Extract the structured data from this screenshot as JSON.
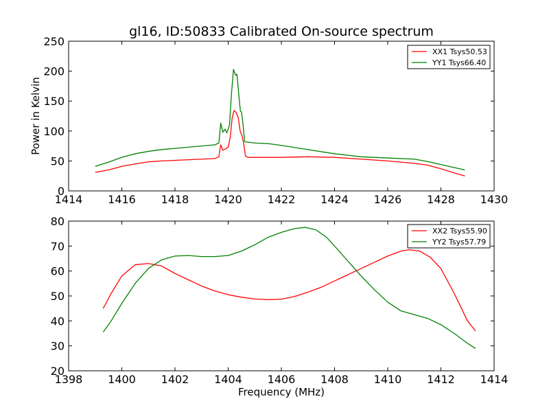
{
  "chart_data": [
    {
      "type": "line",
      "title": "gl16, ID:50833 Calibrated On-source spectrum",
      "xlabel": "",
      "ylabel": "Power in Kelvin",
      "xlim": [
        1414,
        1430
      ],
      "ylim": [
        0,
        250
      ],
      "xticks": [
        1414,
        1416,
        1418,
        1420,
        1422,
        1424,
        1426,
        1428,
        1430
      ],
      "yticks": [
        0,
        50,
        100,
        150,
        200,
        250
      ],
      "grid": false,
      "legend": "top-right",
      "series": [
        {
          "name": "XX1 Tsys50.53",
          "color": "#ff0000",
          "points": [
            [
              1415.0,
              31
            ],
            [
              1415.5,
              35
            ],
            [
              1416.0,
              41
            ],
            [
              1416.5,
              45
            ],
            [
              1417.0,
              48.5
            ],
            [
              1417.5,
              50
            ],
            [
              1418.0,
              51
            ],
            [
              1418.5,
              52
            ],
            [
              1419.0,
              53
            ],
            [
              1419.5,
              54
            ],
            [
              1419.65,
              57
            ],
            [
              1419.72,
              77
            ],
            [
              1419.8,
              68
            ],
            [
              1419.9,
              70
            ],
            [
              1420.0,
              73
            ],
            [
              1420.08,
              90
            ],
            [
              1420.15,
              122
            ],
            [
              1420.22,
              134
            ],
            [
              1420.3,
              131
            ],
            [
              1420.38,
              122
            ],
            [
              1420.45,
              100
            ],
            [
              1420.52,
              92
            ],
            [
              1420.58,
              80
            ],
            [
              1420.65,
              58
            ],
            [
              1420.75,
              56
            ],
            [
              1421.0,
              56
            ],
            [
              1422.0,
              56
            ],
            [
              1423.0,
              57
            ],
            [
              1424.0,
              56
            ],
            [
              1425.0,
              53
            ],
            [
              1426.0,
              50
            ],
            [
              1427.0,
              46
            ],
            [
              1427.5,
              43
            ],
            [
              1428.0,
              37
            ],
            [
              1428.5,
              30
            ],
            [
              1428.9,
              25
            ]
          ]
        },
        {
          "name": "YY1 Tsys66.40",
          "color": "#008000",
          "points": [
            [
              1415.0,
              41
            ],
            [
              1415.5,
              48
            ],
            [
              1416.0,
              56
            ],
            [
              1416.5,
              62
            ],
            [
              1417.0,
              66
            ],
            [
              1417.5,
              69
            ],
            [
              1418.0,
              71
            ],
            [
              1418.5,
              73
            ],
            [
              1419.0,
              75
            ],
            [
              1419.5,
              77
            ],
            [
              1419.65,
              80
            ],
            [
              1419.72,
              113
            ],
            [
              1419.8,
              98
            ],
            [
              1419.88,
              103
            ],
            [
              1419.95,
              97
            ],
            [
              1420.05,
              110
            ],
            [
              1420.12,
              160
            ],
            [
              1420.2,
              203
            ],
            [
              1420.28,
              193
            ],
            [
              1420.33,
              195
            ],
            [
              1420.4,
              160
            ],
            [
              1420.46,
              133
            ],
            [
              1420.5,
              132
            ],
            [
              1420.55,
              115
            ],
            [
              1420.62,
              82
            ],
            [
              1421.0,
              80
            ],
            [
              1421.5,
              79
            ],
            [
              1422.0,
              76
            ],
            [
              1423.0,
              69
            ],
            [
              1424.0,
              62
            ],
            [
              1425.0,
              57
            ],
            [
              1426.0,
              55
            ],
            [
              1427.0,
              53
            ],
            [
              1427.5,
              49
            ],
            [
              1428.0,
              44
            ],
            [
              1428.5,
              39
            ],
            [
              1428.9,
              35
            ]
          ]
        }
      ]
    },
    {
      "type": "line",
      "title": "",
      "xlabel": "Frequency (MHz)",
      "ylabel": "",
      "xlim": [
        1398,
        1414
      ],
      "ylim": [
        20,
        80
      ],
      "xticks": [
        1398,
        1400,
        1402,
        1404,
        1406,
        1408,
        1410,
        1412,
        1414
      ],
      "yticks": [
        20,
        30,
        40,
        50,
        60,
        70,
        80
      ],
      "grid": false,
      "legend": "top-right",
      "series": [
        {
          "name": "XX2 Tsys55.90",
          "color": "#ff0000",
          "points": [
            [
              1399.3,
              45
            ],
            [
              1399.6,
              51
            ],
            [
              1400.0,
              58
            ],
            [
              1400.5,
              62.5
            ],
            [
              1401.0,
              63
            ],
            [
              1401.5,
              62
            ],
            [
              1402.0,
              59
            ],
            [
              1402.5,
              56.5
            ],
            [
              1403.0,
              54
            ],
            [
              1403.5,
              52
            ],
            [
              1404.0,
              50.5
            ],
            [
              1404.5,
              49.5
            ],
            [
              1405.0,
              48.8
            ],
            [
              1405.5,
              48.5
            ],
            [
              1406.0,
              48.7
            ],
            [
              1406.5,
              49.8
            ],
            [
              1407.0,
              51.5
            ],
            [
              1407.5,
              53.5
            ],
            [
              1408.0,
              56
            ],
            [
              1408.5,
              58.5
            ],
            [
              1409.0,
              61
            ],
            [
              1409.5,
              63.5
            ],
            [
              1410.0,
              66
            ],
            [
              1410.5,
              68
            ],
            [
              1410.8,
              68.5
            ],
            [
              1411.2,
              68
            ],
            [
              1411.6,
              65.5
            ],
            [
              1412.0,
              61
            ],
            [
              1412.5,
              51
            ],
            [
              1413.0,
              40
            ],
            [
              1413.3,
              36
            ]
          ]
        },
        {
          "name": "YY2 Tsys57.79",
          "color": "#008000",
          "points": [
            [
              1399.3,
              35.5
            ],
            [
              1399.6,
              40
            ],
            [
              1400.0,
              47
            ],
            [
              1400.5,
              55
            ],
            [
              1401.0,
              61
            ],
            [
              1401.5,
              64.5
            ],
            [
              1402.0,
              66
            ],
            [
              1402.5,
              66.2
            ],
            [
              1403.0,
              65.8
            ],
            [
              1403.5,
              65.8
            ],
            [
              1404.0,
              66.2
            ],
            [
              1404.5,
              68
            ],
            [
              1405.0,
              70.5
            ],
            [
              1405.5,
              73.5
            ],
            [
              1406.0,
              75.5
            ],
            [
              1406.5,
              77
            ],
            [
              1406.9,
              77.5
            ],
            [
              1407.3,
              76.5
            ],
            [
              1407.7,
              73.5
            ],
            [
              1408.0,
              70
            ],
            [
              1408.5,
              64
            ],
            [
              1409.0,
              58
            ],
            [
              1409.5,
              52.5
            ],
            [
              1410.0,
              47.5
            ],
            [
              1410.5,
              44
            ],
            [
              1411.0,
              42.5
            ],
            [
              1411.5,
              41
            ],
            [
              1412.0,
              38.5
            ],
            [
              1412.5,
              35
            ],
            [
              1413.0,
              31
            ],
            [
              1413.3,
              29
            ]
          ]
        }
      ]
    }
  ]
}
